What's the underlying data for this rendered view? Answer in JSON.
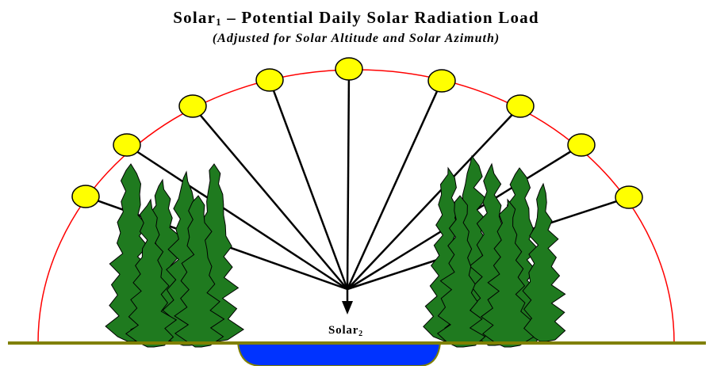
{
  "header": {
    "title": {
      "main": "Solar",
      "sub": "1",
      "rest": " – Potential Daily Solar Radiation Load"
    },
    "subtitle": "(Adjusted for Solar Altitude and Solar Azimuth)"
  },
  "target": {
    "main": "Solar",
    "sub": "2"
  }
}
